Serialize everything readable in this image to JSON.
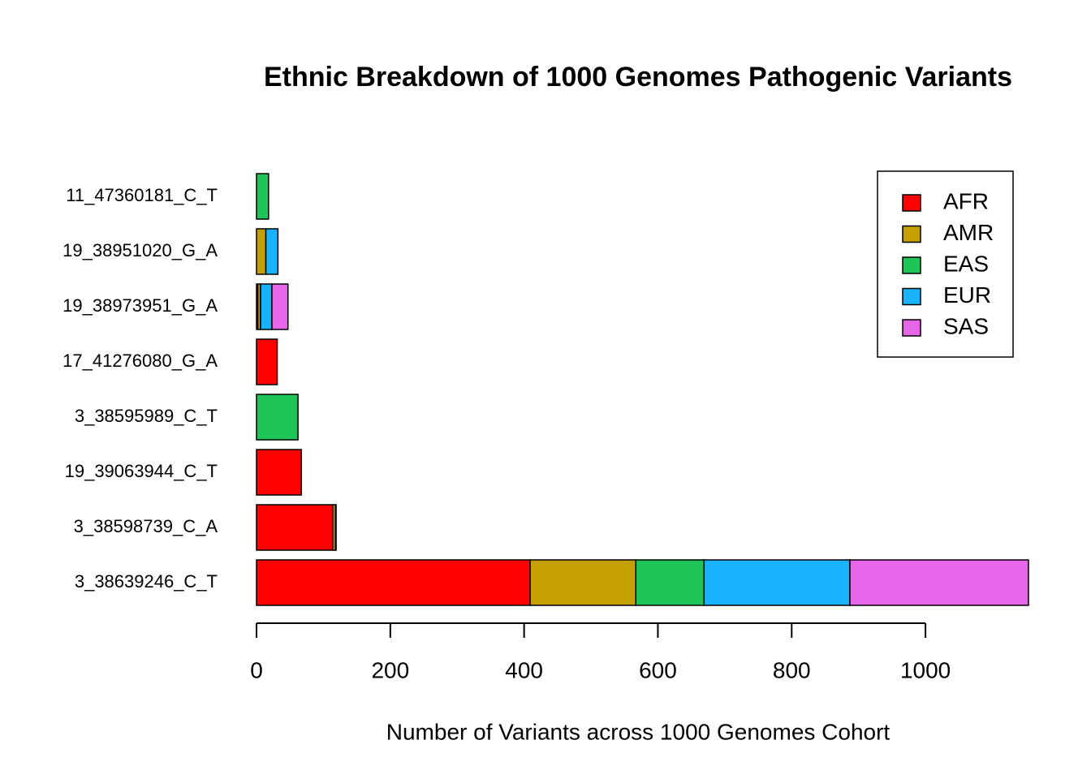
{
  "chart_data": {
    "type": "stacked-bar-horizontal",
    "title": "Ethnic Breakdown of 1000 Genomes Pathogenic Variants",
    "x_label": "Number of Variants across 1000 Genomes Cohort",
    "categories": [
      "3_38639246_C_T",
      "3_38598739_C_A",
      "19_39063944_C_T",
      "3_38595989_C_T",
      "17_41276080_G_A",
      "19_38973951_G_A",
      "19_38951020_G_A",
      "11_47360181_C_T"
    ],
    "series": [
      {
        "name": "AFR",
        "color": "#ff0000",
        "values": [
          409,
          114,
          67,
          0,
          31,
          2,
          0,
          0
        ]
      },
      {
        "name": "AMR",
        "color": "#c4a000",
        "values": [
          158,
          4,
          0,
          0,
          0,
          4,
          14,
          0
        ]
      },
      {
        "name": "EAS",
        "color": "#1dc657",
        "values": [
          102,
          1,
          0,
          62,
          0,
          0,
          0,
          18
        ]
      },
      {
        "name": "EUR",
        "color": "#19b2ff",
        "values": [
          218,
          0,
          0,
          0,
          0,
          17,
          18,
          0
        ]
      },
      {
        "name": "SAS",
        "color": "#e566e8",
        "values": [
          267,
          0,
          0,
          0,
          0,
          24,
          0,
          0
        ]
      }
    ],
    "xlim": [
      0,
      1154
    ],
    "xticks": [
      0,
      200,
      400,
      600,
      800,
      1000
    ],
    "legend": "top-right"
  }
}
